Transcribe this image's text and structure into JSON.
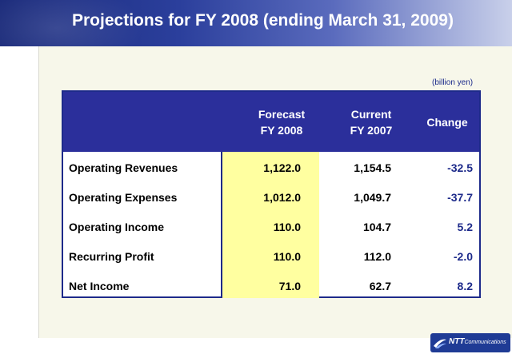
{
  "slide": {
    "title": "Projections for FY 2008 (ending March 31, 2009)",
    "units": "(billion yen)"
  },
  "table": {
    "headers": {
      "forecast_line1": "Forecast",
      "forecast_line2": "FY 2008",
      "current_line1": "Current",
      "current_line2": "FY 2007",
      "change": "Change"
    },
    "rows": [
      {
        "label": "Operating Revenues",
        "forecast": "1,122.0",
        "current": "1,154.5",
        "change": "-32.5"
      },
      {
        "label": "Operating Expenses",
        "forecast": "1,012.0",
        "current": "1,049.7",
        "change": "-37.7"
      },
      {
        "label": "Operating Income",
        "forecast": "110.0",
        "current": "104.7",
        "change": "5.2"
      },
      {
        "label": "Recurring Profit",
        "forecast": "110.0",
        "current": "112.0",
        "change": "-2.0"
      },
      {
        "label": "Net Income",
        "forecast": "71.0",
        "current": "62.7",
        "change": "8.2"
      }
    ]
  },
  "logo": {
    "brand": "NTT",
    "suffix": "Communications"
  },
  "colors": {
    "header_bg": "#2b2f9b",
    "highlight_column": "#ffffa0",
    "change_text": "#1d2a8a"
  }
}
